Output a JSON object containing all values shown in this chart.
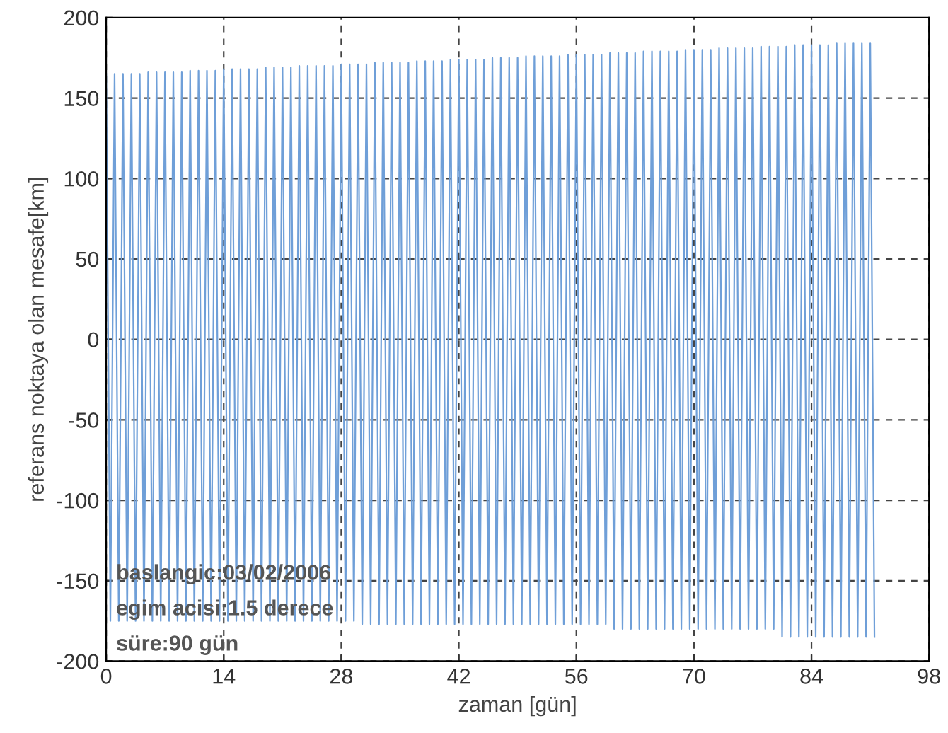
{
  "chart_data": {
    "type": "line",
    "xlabel": "zaman [gün]",
    "ylabel": "referans noktaya olan mesafe[km]",
    "xlim": [
      0,
      98
    ],
    "xticks": [
      0,
      14,
      28,
      42,
      56,
      70,
      84,
      98
    ],
    "ylim": [
      -200,
      200
    ],
    "yticks": [
      -200,
      -150,
      -100,
      -50,
      0,
      50,
      100,
      150,
      200
    ],
    "grid": true,
    "line_style": "solid",
    "marker": "none",
    "annotations": [
      "baslangic:03/02/2006",
      "egim acisi:1.5 derece",
      "süre:90 gün"
    ],
    "series": [
      {
        "color": "#6f9fd8",
        "x": [
          0,
          0.5,
          1,
          1.5,
          2,
          2.5,
          3,
          3.5,
          4,
          4.5,
          5,
          5.5,
          6,
          6.5,
          7,
          7.5,
          8,
          8.5,
          9,
          9.5,
          10,
          10.5,
          11,
          11.5,
          12,
          12.5,
          13,
          13.5,
          14,
          14.5,
          15,
          15.5,
          16,
          16.5,
          17,
          17.5,
          18,
          18.5,
          19,
          19.5,
          20,
          20.5,
          21,
          21.5,
          22,
          22.5,
          23,
          23.5,
          24,
          24.5,
          25,
          25.5,
          26,
          26.5,
          27,
          27.5,
          28,
          28.5,
          29,
          29.5,
          30,
          30.5,
          31,
          31.5,
          32,
          32.5,
          33,
          33.5,
          34,
          34.5,
          35,
          35.5,
          36,
          36.5,
          37,
          37.5,
          38,
          38.5,
          39,
          39.5,
          40,
          40.5,
          41,
          41.5,
          42,
          42.5,
          43,
          43.5,
          44,
          44.5,
          45,
          45.5,
          46,
          46.5,
          47,
          47.5,
          48,
          48.5,
          49,
          49.5,
          50,
          50.5,
          51,
          51.5,
          52,
          52.5,
          53,
          53.5,
          54,
          54.5,
          55,
          55.5,
          56,
          56.5,
          57,
          57.5,
          58,
          58.5,
          59,
          59.5,
          60,
          60.5,
          61,
          61.5,
          62,
          62.5,
          63,
          63.5,
          64,
          64.5,
          65,
          65.5,
          66,
          66.5,
          67,
          67.5,
          68,
          68.5,
          69,
          69.5,
          70,
          70.5,
          71,
          71.5,
          72,
          72.5,
          73,
          73.5,
          74,
          74.5,
          75,
          75.5,
          76,
          76.5,
          77,
          77.5,
          78,
          78.5,
          79,
          79.5,
          80,
          80.5,
          81,
          81.5,
          82,
          82.5,
          83,
          83.5,
          84,
          84.5,
          85,
          85.5,
          86,
          86.5,
          87,
          87.5,
          88,
          88.5,
          89,
          89.5,
          90,
          90.5,
          91,
          91.5
        ],
        "values": [
          165,
          -175,
          165,
          -175,
          165,
          -175,
          165,
          -175,
          165,
          -175,
          166,
          -175,
          166,
          -175,
          166,
          -175,
          166,
          -175,
          166,
          -175,
          167,
          -175,
          167,
          -175,
          167,
          -175,
          167,
          -175,
          168,
          -175,
          168,
          -175,
          168,
          -175,
          168,
          -175,
          168,
          -175,
          169,
          -175,
          169,
          -175,
          169,
          -175,
          169,
          -175,
          170,
          -175,
          170,
          -175,
          170,
          -175,
          170,
          -175,
          170,
          -175,
          171,
          -175,
          171,
          -175,
          171,
          -177,
          171,
          -177,
          172,
          -177,
          172,
          -177,
          172,
          -177,
          172,
          -177,
          172,
          -177,
          173,
          -177,
          173,
          -177,
          173,
          -177,
          173,
          -177,
          174,
          -177,
          174,
          -177,
          174,
          -177,
          174,
          -177,
          174,
          -177,
          175,
          -177,
          175,
          -177,
          175,
          -177,
          175,
          -177,
          176,
          -177,
          176,
          -177,
          176,
          -177,
          176,
          -177,
          176,
          -177,
          177,
          -177,
          177,
          -177,
          177,
          -177,
          177,
          -177,
          177,
          -177,
          178,
          -180,
          178,
          -180,
          178,
          -180,
          178,
          -180,
          179,
          -180,
          179,
          -180,
          179,
          -180,
          179,
          -180,
          179,
          -180,
          180,
          -180,
          180,
          -180,
          180,
          -180,
          180,
          -180,
          181,
          -180,
          181,
          -180,
          181,
          -180,
          181,
          -180,
          181,
          -180,
          182,
          -180,
          182,
          -180,
          182,
          -185,
          182,
          -185,
          183,
          -185,
          183,
          -185,
          183,
          -185,
          183,
          -185,
          183,
          -185,
          184,
          -185,
          184,
          -185,
          184,
          -185,
          184,
          -185,
          184,
          -185
        ]
      }
    ]
  }
}
